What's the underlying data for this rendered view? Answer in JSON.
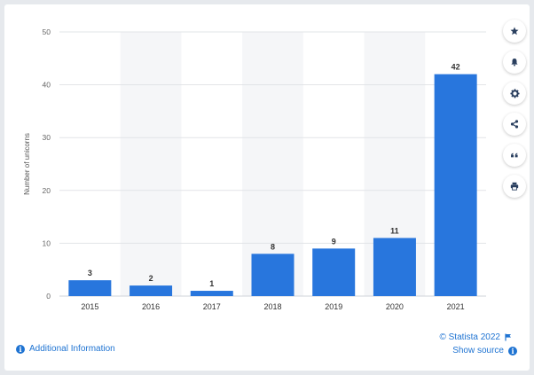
{
  "chart_data": {
    "type": "bar",
    "categories": [
      "2015",
      "2016",
      "2017",
      "2018",
      "2019",
      "2020",
      "2021"
    ],
    "values": [
      3,
      2,
      1,
      8,
      9,
      11,
      42
    ],
    "data_labels": [
      "3",
      "2",
      "1",
      "8",
      "9",
      "11",
      "42"
    ],
    "ylabel": "Number of unicorns",
    "ylim": [
      0,
      50
    ],
    "yticks": [
      0,
      10,
      20,
      30,
      40,
      50
    ],
    "grid": true,
    "bar_color": "#2876dd",
    "alt_band_color": "#f5f6f8"
  },
  "footer": {
    "additional_info": "Additional Information",
    "credit": "© Statista 2022",
    "show_source": "Show source"
  },
  "toolbar": {
    "icons": [
      "star-icon",
      "bell-icon",
      "gear-icon",
      "share-icon",
      "quote-icon",
      "print-icon"
    ]
  },
  "colors": {
    "accent": "#1e73d2",
    "text": "#333333",
    "axis_text": "#666666"
  }
}
